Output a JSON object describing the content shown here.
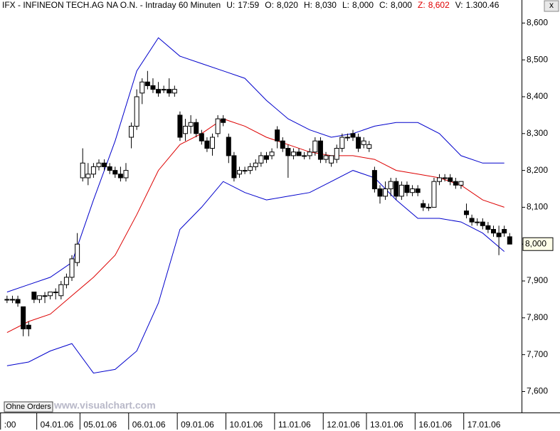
{
  "header": {
    "title": "IFX - INFINEON TECH.AG NA O.N. - Intraday 60 Minuten",
    "fields": [
      {
        "label": "U:",
        "value": "17:59"
      },
      {
        "label": "O:",
        "value": "8,020"
      },
      {
        "label": "H:",
        "value": "8,030"
      },
      {
        "label": "L:",
        "value": "8,000"
      },
      {
        "label": "C:",
        "value": "8,000"
      },
      {
        "label": "Z:",
        "value": "8,602",
        "color": "#e00000"
      },
      {
        "label": "V:",
        "value": "1.300.46"
      }
    ],
    "close_button": "x"
  },
  "watermark": "www.visualchart.com",
  "button": "Ohne Orders",
  "chart_data": {
    "type": "candlestick",
    "open": [
      7.85,
      7.85,
      7.85,
      7.83,
      7.78,
      7.87,
      7.85,
      7.86,
      7.86,
      7.87,
      7.86,
      7.89,
      7.91,
      7.95,
      8.18,
      8.18,
      8.19,
      8.21,
      8.22,
      8.21,
      8.2,
      8.19,
      8.18,
      8.29,
      8.32,
      8.41,
      8.44,
      8.43,
      8.42,
      8.42,
      8.42,
      8.41,
      8.35,
      8.3,
      8.32,
      8.33,
      8.3,
      8.28,
      8.26,
      8.3,
      8.34,
      8.29,
      8.24,
      8.19,
      8.2,
      8.2,
      8.21,
      8.22,
      8.24,
      8.24,
      8.31,
      8.28,
      8.26,
      8.24,
      8.25,
      8.24,
      8.24,
      8.25,
      8.28,
      8.23,
      8.22,
      8.23,
      8.26,
      8.29,
      8.3,
      8.29,
      8.27,
      8.26,
      8.2,
      8.15,
      8.13,
      8.15,
      8.17,
      8.13,
      8.16,
      8.14,
      8.15,
      8.11,
      8.1,
      8.1,
      8.17,
      8.18,
      8.18,
      8.17,
      8.16,
      8.09,
      8.07,
      8.06,
      8.06,
      8.05,
      8.04,
      8.03,
      8.04,
      8.02
    ],
    "high": [
      7.86,
      7.86,
      7.86,
      7.83,
      7.79,
      7.87,
      7.86,
      7.87,
      7.87,
      7.88,
      7.9,
      7.92,
      7.97,
      8.03,
      8.26,
      8.22,
      8.22,
      8.23,
      8.23,
      8.22,
      8.21,
      8.21,
      8.22,
      8.33,
      8.42,
      8.45,
      8.47,
      8.45,
      8.44,
      8.43,
      8.45,
      8.43,
      8.36,
      8.34,
      8.35,
      8.34,
      8.31,
      8.29,
      8.3,
      8.35,
      8.35,
      8.3,
      8.25,
      8.21,
      8.21,
      8.22,
      8.23,
      8.25,
      8.25,
      8.26,
      8.32,
      8.29,
      8.27,
      8.26,
      8.26,
      8.25,
      8.26,
      8.29,
      8.29,
      8.25,
      8.24,
      8.27,
      8.3,
      8.3,
      8.31,
      8.3,
      8.29,
      8.28,
      8.21,
      8.16,
      8.17,
      8.18,
      8.18,
      8.17,
      8.17,
      8.16,
      8.16,
      8.12,
      8.11,
      8.18,
      8.19,
      8.19,
      8.19,
      8.18,
      8.17,
      8.11,
      8.08,
      8.07,
      8.07,
      8.06,
      8.05,
      8.05,
      8.05,
      8.03
    ],
    "low": [
      7.84,
      7.84,
      7.83,
      7.75,
      7.75,
      7.84,
      7.84,
      7.84,
      7.85,
      7.85,
      7.85,
      7.88,
      7.9,
      7.94,
      8.17,
      8.16,
      8.18,
      8.2,
      8.2,
      8.19,
      8.18,
      8.17,
      8.17,
      8.26,
      8.31,
      8.38,
      8.42,
      8.41,
      8.4,
      8.41,
      8.4,
      8.4,
      8.28,
      8.28,
      8.3,
      8.29,
      8.27,
      8.25,
      8.24,
      8.29,
      8.32,
      8.22,
      8.17,
      8.18,
      8.19,
      8.19,
      8.2,
      8.21,
      8.22,
      8.23,
      8.26,
      8.25,
      8.18,
      8.23,
      8.24,
      8.23,
      8.23,
      8.24,
      8.22,
      8.22,
      8.21,
      8.22,
      8.25,
      8.28,
      8.28,
      8.25,
      8.26,
      8.25,
      8.14,
      8.11,
      8.12,
      8.13,
      8.12,
      8.12,
      8.13,
      8.13,
      8.13,
      8.09,
      8.09,
      8.1,
      8.16,
      8.17,
      8.16,
      8.15,
      8.15,
      8.07,
      8.05,
      8.05,
      8.04,
      8.03,
      8.02,
      7.97,
      8.02,
      8.0
    ],
    "close": [
      7.85,
      7.85,
      7.84,
      7.77,
      7.77,
      7.85,
      7.86,
      7.86,
      7.87,
      7.87,
      7.89,
      7.91,
      7.96,
      8.0,
      8.22,
      8.19,
      8.21,
      8.22,
      8.21,
      8.2,
      8.19,
      8.18,
      8.2,
      8.32,
      8.4,
      8.44,
      8.43,
      8.42,
      8.41,
      8.42,
      8.41,
      8.42,
      8.29,
      8.32,
      8.33,
      8.3,
      8.28,
      8.26,
      8.29,
      8.34,
      8.33,
      8.24,
      8.18,
      8.2,
      8.2,
      8.21,
      8.22,
      8.24,
      8.23,
      8.25,
      8.28,
      8.26,
      8.24,
      8.25,
      8.24,
      8.24,
      8.25,
      8.28,
      8.23,
      8.24,
      8.24,
      8.26,
      8.29,
      8.29,
      8.29,
      8.26,
      8.28,
      8.27,
      8.15,
      8.13,
      8.15,
      8.17,
      8.13,
      8.16,
      8.14,
      8.15,
      8.14,
      8.1,
      8.1,
      8.17,
      8.18,
      8.18,
      8.17,
      8.16,
      8.17,
      8.08,
      8.06,
      8.06,
      8.05,
      8.04,
      8.03,
      8.02,
      8.03,
      8.0
    ],
    "lines": [
      {
        "color": "#0000cc",
        "x": [
          0,
          4,
          8,
          12,
          16,
          20,
          24,
          28,
          32,
          36,
          40,
          44,
          48,
          52,
          56,
          60,
          64,
          68,
          72,
          76,
          80,
          84,
          88,
          92
        ],
        "values": [
          7.87,
          7.89,
          7.91,
          7.95,
          8.12,
          8.28,
          8.47,
          8.56,
          8.51,
          8.49,
          8.47,
          8.45,
          8.39,
          8.34,
          8.31,
          8.29,
          8.3,
          8.32,
          8.33,
          8.33,
          8.3,
          8.24,
          8.22,
          8.22
        ]
      },
      {
        "color": "#dd0000",
        "x": [
          0,
          4,
          8,
          12,
          16,
          20,
          24,
          28,
          32,
          36,
          40,
          44,
          48,
          52,
          56,
          60,
          64,
          68,
          72,
          76,
          80,
          84,
          88,
          92
        ],
        "values": [
          7.76,
          7.79,
          7.81,
          7.86,
          7.91,
          7.97,
          8.08,
          8.2,
          8.27,
          8.3,
          8.34,
          8.32,
          8.29,
          8.27,
          8.25,
          8.24,
          8.24,
          8.23,
          8.2,
          8.19,
          8.18,
          8.16,
          8.12,
          8.1
        ]
      },
      {
        "color": "#0000cc",
        "x": [
          0,
          4,
          8,
          12,
          16,
          20,
          24,
          28,
          32,
          36,
          40,
          44,
          48,
          52,
          56,
          60,
          64,
          68,
          72,
          76,
          80,
          84,
          88,
          92
        ],
        "values": [
          7.67,
          7.68,
          7.71,
          7.73,
          7.65,
          7.66,
          7.71,
          7.84,
          8.04,
          8.1,
          8.17,
          8.14,
          8.12,
          8.13,
          8.14,
          8.17,
          8.2,
          8.18,
          8.12,
          8.07,
          8.07,
          8.06,
          8.03,
          7.98
        ]
      }
    ],
    "xlim": [
      -1.3,
      95.2
    ],
    "xticks": [
      {
        "value": -1.2,
        "label": ":00"
      },
      {
        "value": 5.5,
        "label": "04.01.06"
      },
      {
        "value": 13.5,
        "label": "05.01.06"
      },
      {
        "value": 22.5,
        "label": "06.01.06"
      },
      {
        "value": 31.5,
        "label": "09.01.06"
      },
      {
        "value": 40.5,
        "label": "10.01.06"
      },
      {
        "value": 49.5,
        "label": "11.01.06"
      },
      {
        "value": 58.5,
        "label": "12.01.06"
      },
      {
        "value": 66.5,
        "label": "13.01.06"
      },
      {
        "value": 75.5,
        "label": "16.01.06"
      },
      {
        "value": 84.5,
        "label": "17.01.06"
      }
    ],
    "ylim": [
      7.543,
      8.6625
    ],
    "yticks": [
      {
        "value": 7.6,
        "label": "7,600"
      },
      {
        "value": 7.7,
        "label": "7,700"
      },
      {
        "value": 7.8,
        "label": "7,800"
      },
      {
        "value": 7.9,
        "label": "7,900"
      },
      {
        "value": 8.0,
        "label": "8,000"
      },
      {
        "value": 8.1,
        "label": "8,100"
      },
      {
        "value": 8.2,
        "label": "8,200"
      },
      {
        "value": 8.3,
        "label": "8,300"
      },
      {
        "value": 8.4,
        "label": "8,400"
      },
      {
        "value": 8.5,
        "label": "8,500"
      },
      {
        "value": 8.6,
        "label": "8,600"
      }
    ],
    "last_price": {
      "value": 8.0,
      "label": "8,000"
    }
  }
}
